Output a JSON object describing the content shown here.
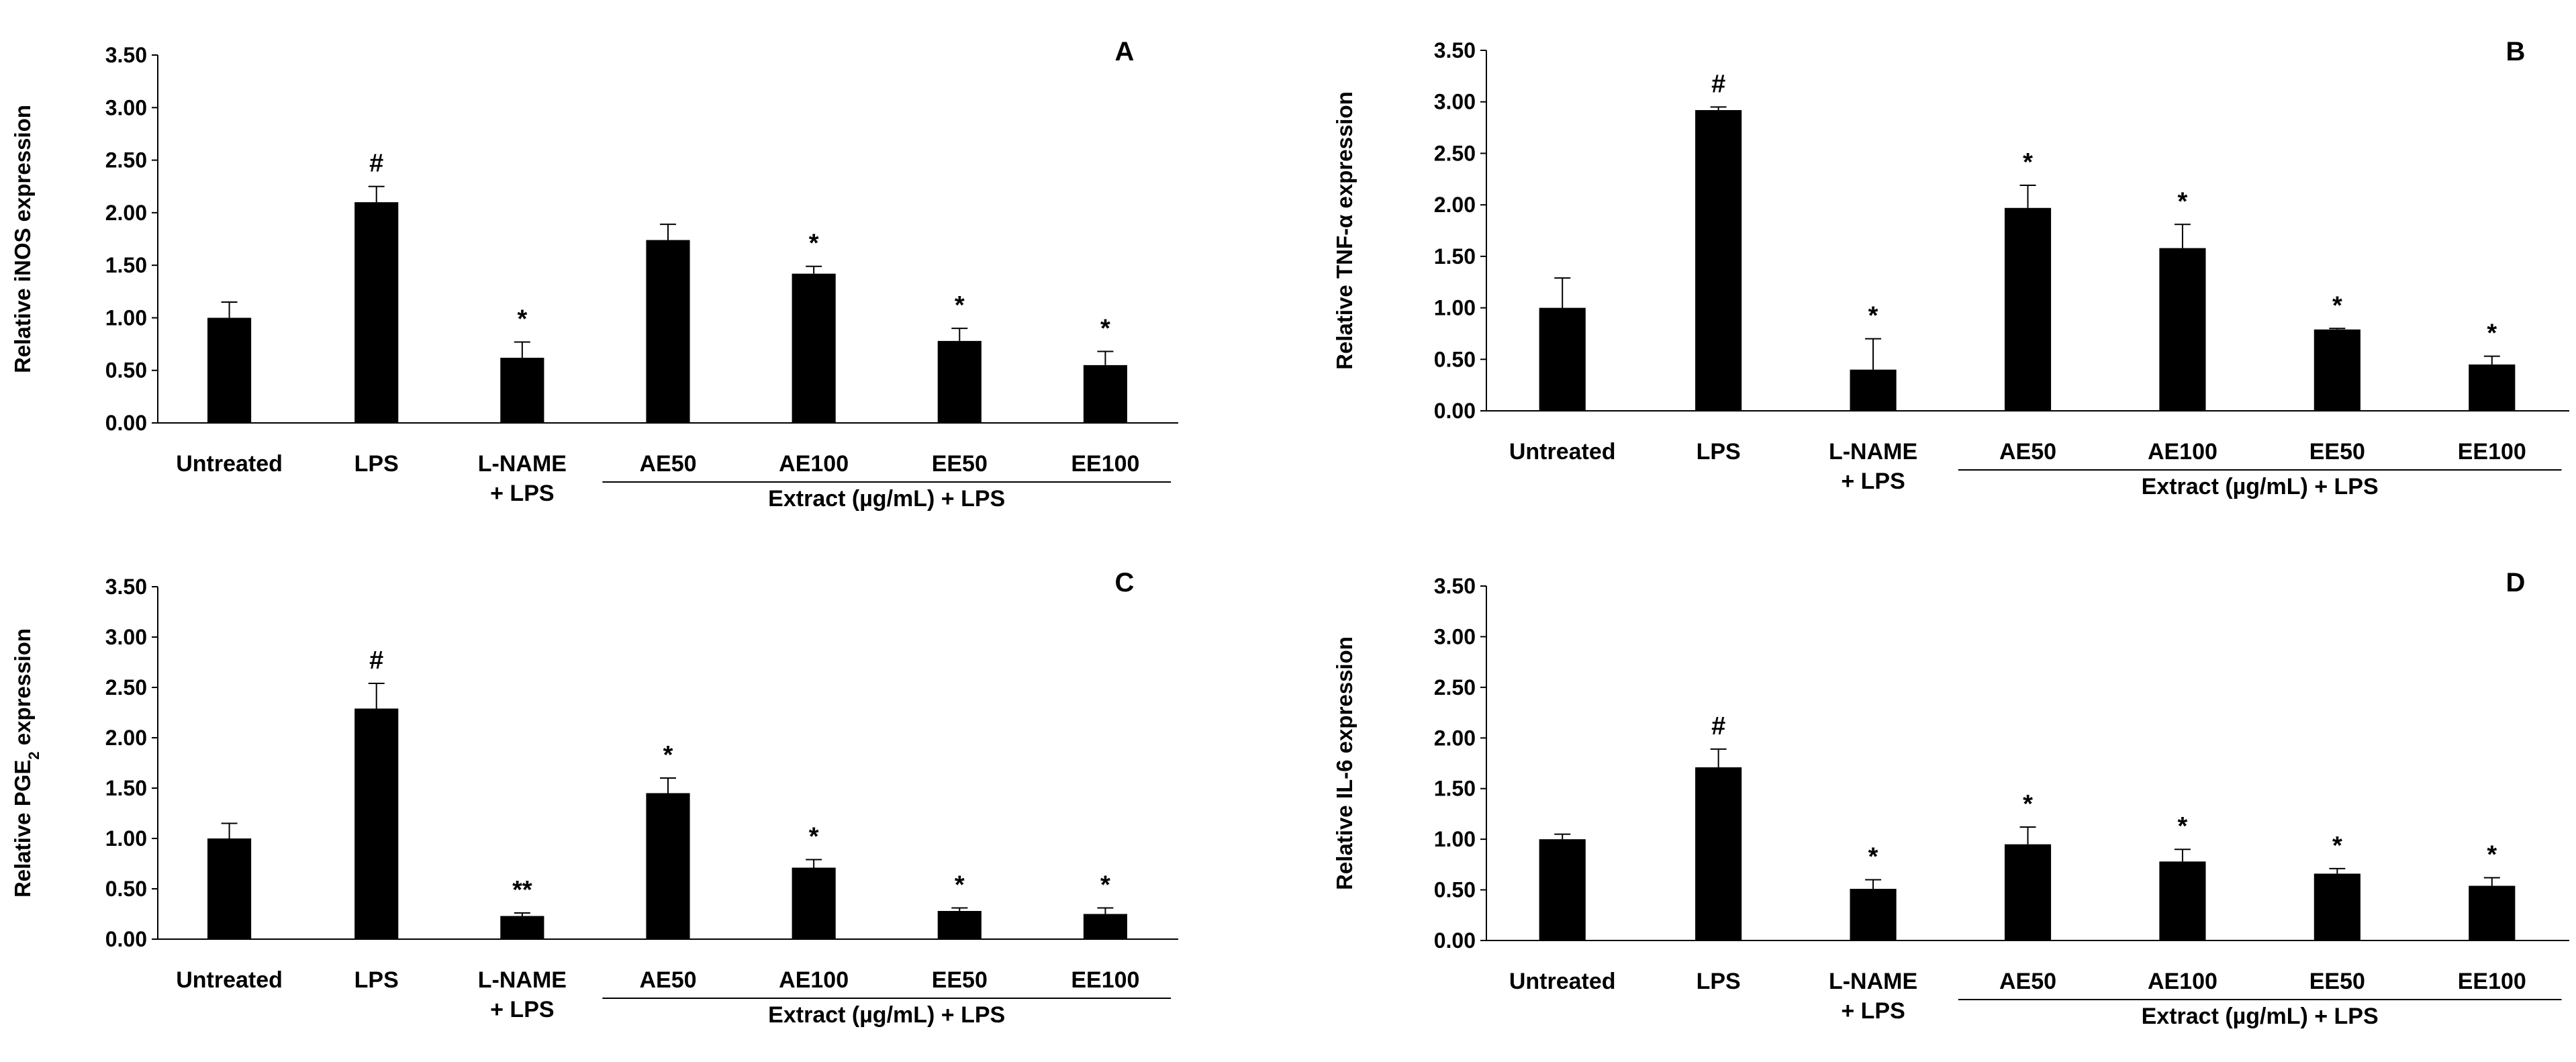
{
  "chart_data": [
    {
      "type": "bar",
      "panel_label": "A",
      "ylabel": "Relative iNOS expression",
      "ylim": [
        0,
        3.5
      ],
      "yticks": [
        "0.00",
        "0.50",
        "1.00",
        "1.50",
        "2.00",
        "2.50",
        "3.00",
        "3.50"
      ],
      "categories": [
        [
          "Untreated"
        ],
        [
          "LPS"
        ],
        [
          "L-NAME",
          "+ LPS"
        ],
        [
          "AE50"
        ],
        [
          "AE100"
        ],
        [
          "EE50"
        ],
        [
          "EE100"
        ]
      ],
      "values": [
        1.0,
        2.1,
        0.62,
        1.74,
        1.42,
        0.78,
        0.55
      ],
      "errors": [
        0.15,
        0.15,
        0.15,
        0.15,
        0.07,
        0.12,
        0.13
      ],
      "annotations": [
        "",
        "#",
        "*",
        "",
        "*",
        "*",
        "*"
      ],
      "group_label": "Extract (µg/mL) + LPS"
    },
    {
      "type": "bar",
      "panel_label": "B",
      "ylabel": "Relative TNF-α expression",
      "ylim": [
        0,
        3.5
      ],
      "yticks": [
        "0.00",
        "0.50",
        "1.00",
        "1.50",
        "2.00",
        "2.50",
        "3.00",
        "3.50"
      ],
      "categories": [
        [
          "Untreated"
        ],
        [
          "LPS"
        ],
        [
          "L-NAME",
          "+ LPS"
        ],
        [
          "AE50"
        ],
        [
          "AE100"
        ],
        [
          "EE50"
        ],
        [
          "EE100"
        ]
      ],
      "values": [
        1.0,
        2.92,
        0.4,
        1.97,
        1.58,
        0.79,
        0.45
      ],
      "errors": [
        0.29,
        0.03,
        0.3,
        0.22,
        0.23,
        0.01,
        0.08
      ],
      "annotations": [
        "",
        "#",
        "*",
        "*",
        "*",
        "*",
        "*"
      ],
      "group_label": "Extract (µg/mL) + LPS"
    },
    {
      "type": "bar",
      "panel_label": "C",
      "ylabel": "Relative PGE",
      "ylabel_sub": "2",
      "ylabel_suffix": " expression",
      "ylim": [
        0,
        3.5
      ],
      "yticks": [
        "0.00",
        "0.50",
        "1.00",
        "1.50",
        "2.00",
        "2.50",
        "3.00",
        "3.50"
      ],
      "categories": [
        [
          "Untreated"
        ],
        [
          "LPS"
        ],
        [
          "L-NAME",
          "+ LPS"
        ],
        [
          "AE50"
        ],
        [
          "AE100"
        ],
        [
          "EE50"
        ],
        [
          "EE100"
        ]
      ],
      "values": [
        1.0,
        2.29,
        0.23,
        1.45,
        0.71,
        0.28,
        0.25
      ],
      "errors": [
        0.15,
        0.25,
        0.03,
        0.15,
        0.08,
        0.03,
        0.06
      ],
      "annotations": [
        "",
        "#",
        "**",
        "*",
        "*",
        "*",
        "*"
      ],
      "group_label": "Extract (µg/mL) + LPS"
    },
    {
      "type": "bar",
      "panel_label": "D",
      "ylabel": "Relative IL-6 expression",
      "ylim": [
        0,
        3.5
      ],
      "yticks": [
        "0.00",
        "0.50",
        "1.00",
        "1.50",
        "2.00",
        "2.50",
        "3.00",
        "3.50"
      ],
      "categories": [
        [
          "Untreated"
        ],
        [
          "LPS"
        ],
        [
          "L-NAME",
          "+ LPS"
        ],
        [
          "AE50"
        ],
        [
          "AE100"
        ],
        [
          "EE50"
        ],
        [
          "EE100"
        ]
      ],
      "values": [
        1.0,
        1.71,
        0.51,
        0.95,
        0.78,
        0.66,
        0.54
      ],
      "errors": [
        0.05,
        0.18,
        0.09,
        0.17,
        0.12,
        0.05,
        0.08
      ],
      "annotations": [
        "",
        "#",
        "*",
        "*",
        "*",
        "*",
        "*"
      ],
      "group_label": "Extract (µg/mL) + LPS"
    }
  ]
}
